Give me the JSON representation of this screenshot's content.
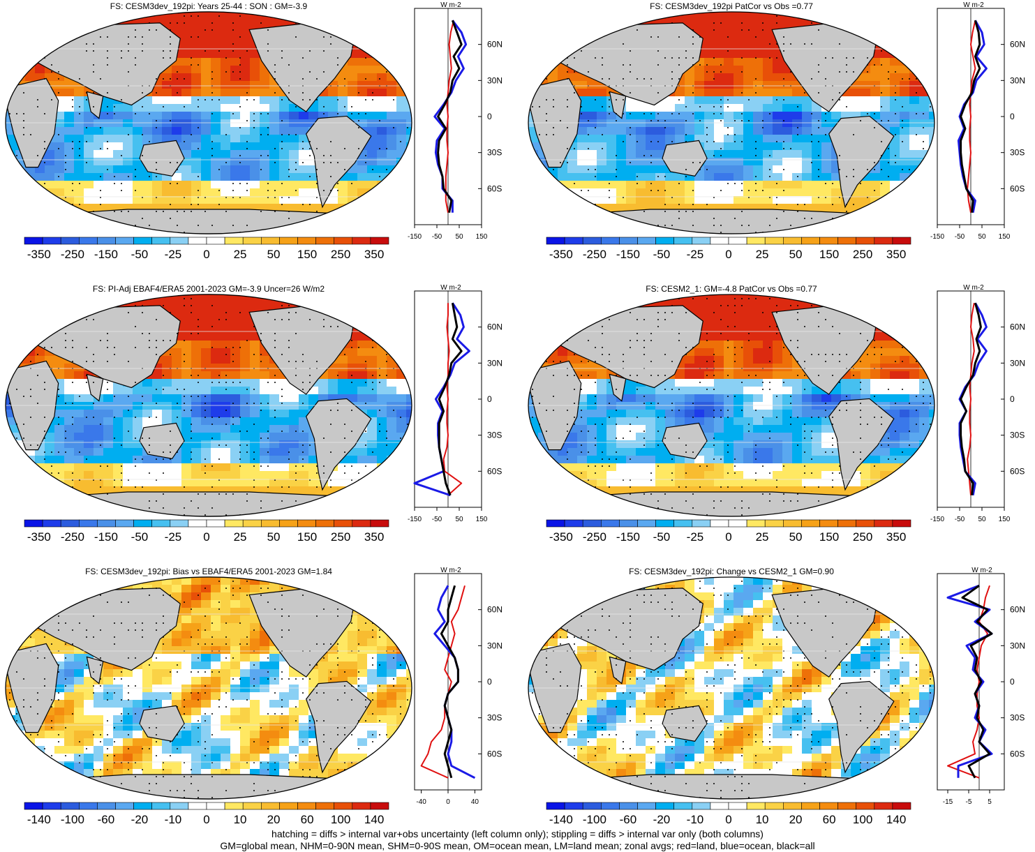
{
  "palette": [
    "#0a14e6",
    "#1e3cea",
    "#2c5cde",
    "#3a78ea",
    "#4a90e8",
    "#5aa8f0",
    "#00aef0",
    "#46c0f0",
    "#8ad0f4",
    "#ffffff",
    "#ffffff",
    "#ffe862",
    "#fad246",
    "#f8bc30",
    "#f6a218",
    "#f48c10",
    "#ee7008",
    "#e85008",
    "#dc2a10",
    "#c80c0c"
  ],
  "land_color": "#c8c8c8",
  "lines": {
    "land": "#e01010",
    "ocean": "#1a1ae6",
    "all": "#000000"
  },
  "chart_data": [
    {
      "type": "heatmap",
      "title": "FS: CESM3dev_192pi: Years 25-44 : SON : GM=-3.9",
      "colorbar_labels": [
        "-350",
        "-250",
        "-150",
        "-50",
        "-25",
        "0",
        "25",
        "50",
        "150",
        "250",
        "350"
      ],
      "profile": {
        "xticks": [
          "-150",
          "-50",
          "50",
          "150"
        ],
        "xlim": [
          -150,
          150
        ],
        "yticks": [
          "60N",
          "30N",
          "0",
          "30S",
          "60S"
        ],
        "units": "W m-2",
        "lat": [
          80,
          70,
          60,
          50,
          40,
          30,
          20,
          10,
          0,
          -10,
          -20,
          -30,
          -40,
          -50,
          -60,
          -70,
          -80
        ],
        "land": [
          25,
          12,
          5,
          10,
          15,
          5,
          0,
          -5,
          0,
          -5,
          -5,
          0,
          -5,
          -10,
          -10,
          -10,
          0
        ],
        "ocean": [
          20,
          60,
          80,
          45,
          70,
          35,
          15,
          -20,
          -60,
          -15,
          -50,
          -55,
          -45,
          -25,
          -25,
          20,
          20
        ],
        "all": [
          20,
          40,
          60,
          25,
          50,
          20,
          10,
          -15,
          -45,
          -10,
          -40,
          -45,
          -40,
          -25,
          -20,
          15,
          5
        ]
      }
    },
    {
      "type": "heatmap",
      "title": "FS: CESM3dev_192pi PatCor vs Obs =0.77",
      "colorbar_labels": [
        "-350",
        "-250",
        "-150",
        "-50",
        "-25",
        "0",
        "25",
        "50",
        "150",
        "250",
        "350"
      ],
      "profile": {
        "xticks": [
          "-150",
          "-50",
          "50",
          "150"
        ],
        "xlim": [
          -150,
          150
        ],
        "yticks": [
          "60N",
          "30N",
          "0",
          "30S",
          "60S"
        ],
        "units": "W m-2",
        "lat": [
          80,
          70,
          60,
          50,
          40,
          30,
          20,
          10,
          0,
          -10,
          -20,
          -30,
          -40,
          -50,
          -60,
          -70,
          -80
        ],
        "land": [
          20,
          8,
          0,
          10,
          20,
          5,
          0,
          -5,
          0,
          -5,
          -5,
          0,
          -5,
          -10,
          -15,
          -10,
          0
        ],
        "ocean": [
          20,
          50,
          60,
          25,
          70,
          25,
          10,
          -30,
          -50,
          -30,
          -55,
          -50,
          -45,
          -35,
          -20,
          20,
          10
        ],
        "all": [
          20,
          35,
          40,
          20,
          40,
          15,
          5,
          -25,
          -45,
          -25,
          -45,
          -45,
          -40,
          -30,
          -20,
          10,
          5
        ]
      }
    },
    {
      "type": "heatmap",
      "title": "FS: PI-Adj EBAF4/ERA5 2001-2023 GM=-3.9 Uncer=26 W/m2",
      "colorbar_labels": [
        "-350",
        "-250",
        "-150",
        "-50",
        "-25",
        "0",
        "25",
        "50",
        "150",
        "250",
        "350"
      ],
      "profile": {
        "xticks": [
          "-150",
          "-50",
          "50",
          "150"
        ],
        "xlim": [
          -150,
          150
        ],
        "yticks": [
          "60N",
          "30N",
          "0",
          "30S",
          "60S"
        ],
        "units": "W m-2",
        "lat": [
          80,
          70,
          60,
          50,
          40,
          30,
          20,
          10,
          0,
          -10,
          -20,
          -30,
          -40,
          -50,
          -60,
          -70,
          -80
        ],
        "land": [
          0,
          0,
          -5,
          0,
          5,
          0,
          0,
          -5,
          0,
          -5,
          -5,
          0,
          -5,
          -20,
          -15,
          60,
          0
        ],
        "ocean": [
          20,
          55,
          70,
          40,
          95,
          30,
          10,
          -20,
          -55,
          -25,
          -45,
          -45,
          -40,
          -30,
          -20,
          -150,
          10
        ],
        "all": [
          20,
          30,
          40,
          20,
          60,
          15,
          5,
          -15,
          -40,
          -20,
          -40,
          -40,
          -40,
          -30,
          -20,
          -10,
          10
        ]
      }
    },
    {
      "type": "heatmap",
      "title": "FS: CESM2_1: GM=-4.8 PatCor vs Obs =0.77",
      "colorbar_labels": [
        "-350",
        "-250",
        "-150",
        "-50",
        "-25",
        "0",
        "25",
        "50",
        "150",
        "250",
        "350"
      ],
      "profile": {
        "xticks": [
          "-150",
          "-50",
          "50",
          "150"
        ],
        "xlim": [
          -150,
          150
        ],
        "yticks": [
          "60N",
          "30N",
          "0",
          "30S",
          "60S"
        ],
        "units": "W m-2",
        "lat": [
          80,
          70,
          60,
          50,
          40,
          30,
          20,
          10,
          0,
          -10,
          -20,
          -30,
          -40,
          -50,
          -60,
          -70,
          -80
        ],
        "land": [
          15,
          5,
          0,
          10,
          15,
          5,
          0,
          -5,
          0,
          -5,
          -5,
          0,
          -5,
          -15,
          -10,
          -5,
          0
        ],
        "ocean": [
          20,
          50,
          70,
          30,
          70,
          35,
          15,
          -25,
          -50,
          -20,
          -50,
          -50,
          -45,
          -35,
          -25,
          20,
          10
        ],
        "all": [
          20,
          35,
          45,
          25,
          40,
          20,
          10,
          -20,
          -45,
          -20,
          -45,
          -45,
          -40,
          -30,
          -25,
          10,
          5
        ]
      }
    },
    {
      "type": "heatmap",
      "title": "FS: CESM3dev_192pi: Bias vs EBAF4/ERA5 2001-2023  GM=1.84",
      "colorbar_labels": [
        "-140",
        "-100",
        "-60",
        "-20",
        "-10",
        "0",
        "10",
        "20",
        "60",
        "100",
        "140"
      ],
      "profile": {
        "xticks": [
          "-40",
          "0",
          "40"
        ],
        "xlim": [
          -50,
          50
        ],
        "yticks": [
          "60N",
          "30N",
          "0",
          "30S",
          "60S"
        ],
        "units": "W m-2",
        "lat": [
          80,
          70,
          60,
          50,
          40,
          30,
          20,
          10,
          0,
          -10,
          -20,
          -30,
          -40,
          -50,
          -60,
          -70,
          -80
        ],
        "land": [
          25,
          20,
          15,
          5,
          10,
          5,
          0,
          -5,
          5,
          0,
          -5,
          -5,
          -10,
          -25,
          -30,
          -40,
          0
        ],
        "ocean": [
          0,
          -10,
          -15,
          -5,
          -20,
          -5,
          10,
          15,
          15,
          0,
          -5,
          0,
          5,
          5,
          0,
          5,
          40
        ],
        "all": [
          10,
          5,
          0,
          0,
          -10,
          0,
          10,
          15,
          15,
          0,
          -5,
          0,
          5,
          0,
          -5,
          0,
          5
        ]
      }
    },
    {
      "type": "heatmap",
      "title": "FS: CESM3dev_192pi: Change vs CESM2_1 GM=0.90",
      "colorbar_labels": [
        "-140",
        "-100",
        "-60",
        "-20",
        "-10",
        "0",
        "10",
        "20",
        "60",
        "100",
        "140"
      ],
      "profile": {
        "xticks": [
          "-15",
          "-5",
          "5"
        ],
        "xlim": [
          -20,
          12
        ],
        "yticks": [
          "60N",
          "30N",
          "0",
          "30S",
          "60S"
        ],
        "units": "W m-2",
        "lat": [
          80,
          70,
          60,
          50,
          40,
          30,
          20,
          10,
          0,
          -10,
          -20,
          -30,
          -40,
          -50,
          -60,
          -70,
          -80
        ],
        "land": [
          5,
          3,
          2,
          0,
          4,
          1,
          0,
          -1,
          0,
          -1,
          -1,
          0,
          -1,
          -3,
          -2,
          -15,
          0
        ],
        "ocean": [
          0,
          -15,
          5,
          -2,
          6,
          -6,
          -2,
          -3,
          2,
          -2,
          0,
          -2,
          3,
          0,
          6,
          -10,
          -10
        ],
        "all": [
          0,
          -8,
          4,
          -1,
          6,
          -4,
          -1,
          -2,
          1,
          -2,
          0,
          -1,
          2,
          0,
          5,
          -5,
          -2
        ]
      }
    }
  ],
  "footer": {
    "line1": "hatching = diffs > internal var+obs uncertainty (left column only); stippling = diffs > internal var only (both columns)",
    "line2": "GM=global mean, NHM=0-90N mean, SHM=0-90S mean, OM=ocean mean, LM=land mean; zonal avgs; red=land, blue=ocean, black=all"
  }
}
